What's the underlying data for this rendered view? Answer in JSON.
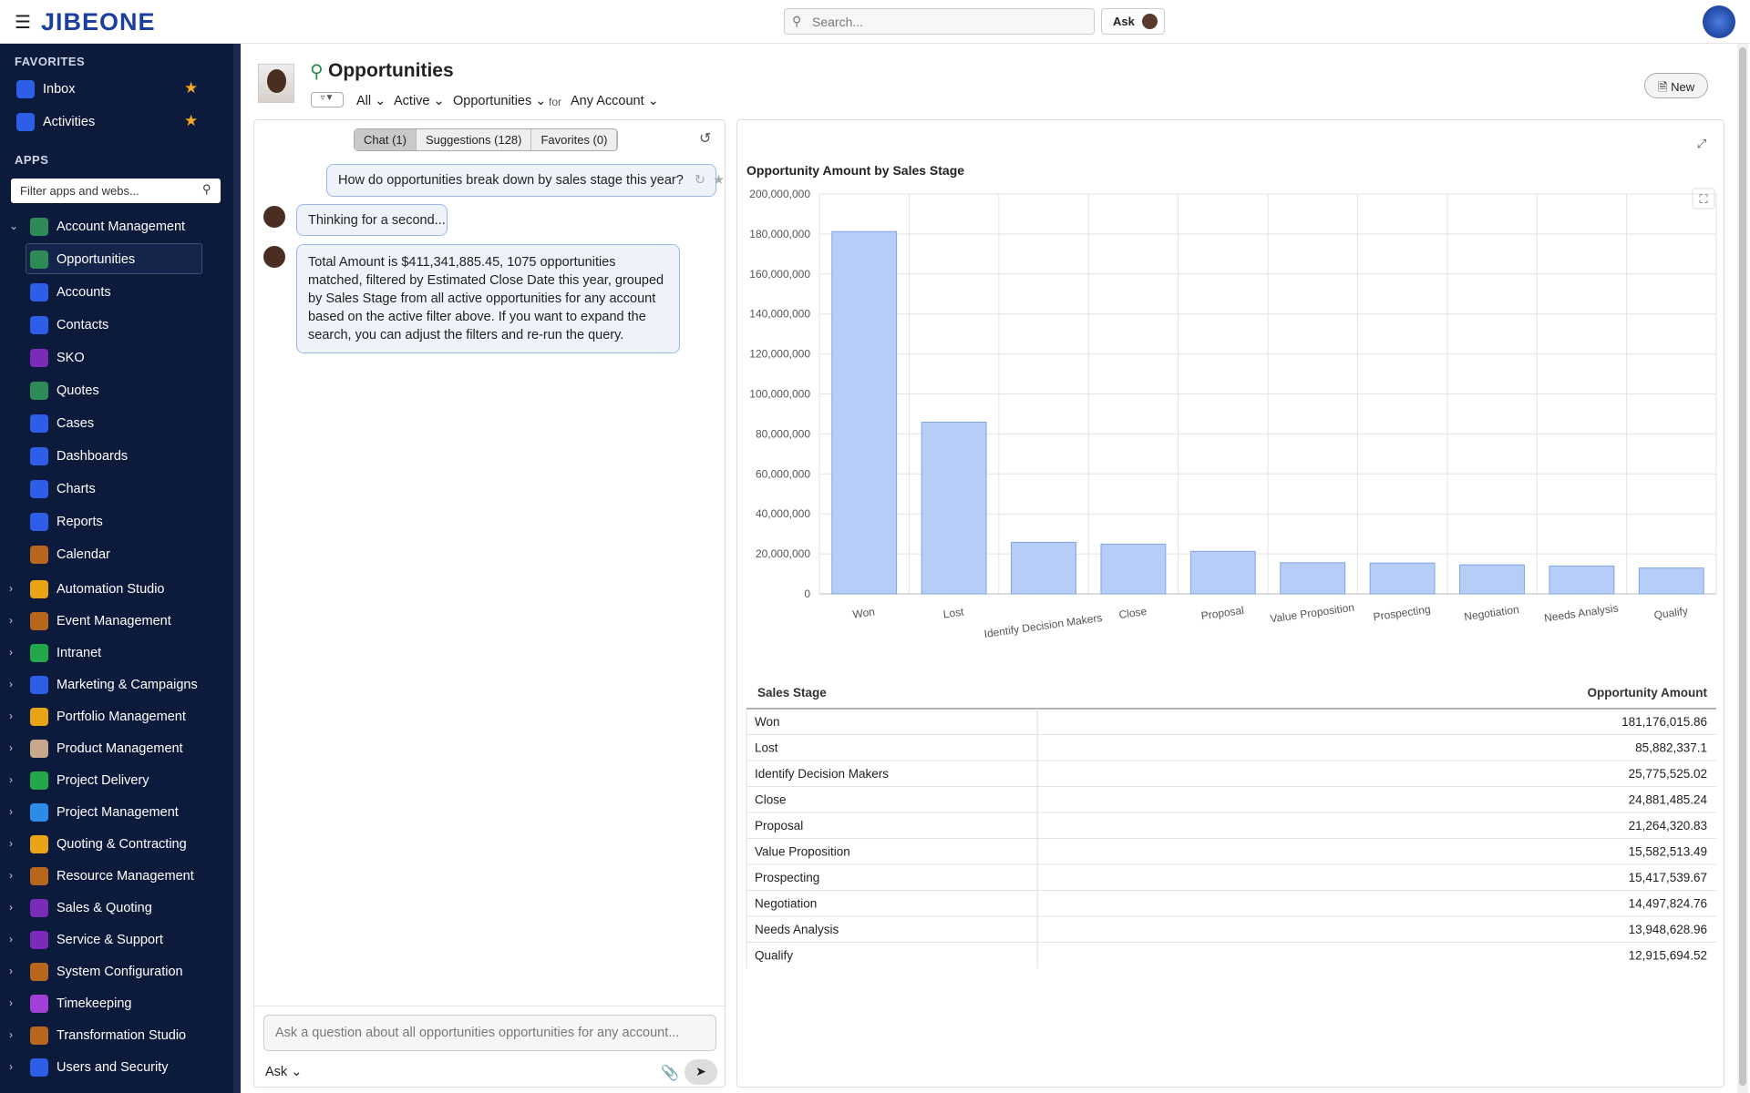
{
  "header": {
    "logo": "JIBEONE",
    "search_placeholder": "Search...",
    "ask": "Ask"
  },
  "sidebar": {
    "favorites_title": "FAVORITES",
    "favorites": [
      "Inbox",
      "Activities"
    ],
    "apps_title": "APPS",
    "filter_placeholder": "Filter apps and webs...",
    "open_group": {
      "name": "Account Management",
      "items": [
        "Opportunities",
        "Accounts",
        "Contacts",
        "SKO",
        "Quotes",
        "Cases",
        "Dashboards",
        "Charts",
        "Reports",
        "Calendar"
      ]
    },
    "groups": [
      "Automation Studio",
      "Event Management",
      "Intranet",
      "Marketing & Campaigns",
      "Portfolio Management",
      "Product Management",
      "Project Delivery",
      "Project Management",
      "Quoting & Contracting",
      "Resource Management",
      "Sales & Quoting",
      "Service & Support",
      "System Configuration",
      "Timekeeping",
      "Transformation Studio",
      "Users and Security"
    ]
  },
  "page": {
    "title": "Opportunities",
    "filters": [
      "All",
      "Active",
      "Opportunities"
    ],
    "for": "for",
    "account": "Any Account",
    "new_button": "New"
  },
  "chat": {
    "tabs": [
      "Chat (1)",
      "Suggestions (128)",
      "Favorites (0)"
    ],
    "question": "How do opportunities break down by sales stage this year?",
    "thinking": "Thinking for a second...",
    "answer": "Total Amount is $411,341,885.45, 1075 opportunities matched, filtered by Estimated Close Date this year, grouped by Sales Stage from all active opportunities for any account based on the active filter above. If you want to expand the search, you can adjust the filters and re-run the query.",
    "input_placeholder": "Ask a question about all opportunities opportunities for any account...",
    "mode": "Ask"
  },
  "chart": {
    "type": "bar",
    "title": "Opportunity Amount by Sales Stage",
    "categories": [
      "Won",
      "Lost",
      "Identify Decision Makers",
      "Close",
      "Proposal",
      "Value Proposition",
      "Prospecting",
      "Negotiation",
      "Needs Analysis",
      "Qualify"
    ],
    "values": [
      181176015.86,
      85882337.1,
      25775525.02,
      24881485.24,
      21264320.83,
      15582513.49,
      15417539.67,
      14497824.76,
      13948628.96,
      12915694.52
    ],
    "color": "#b5cdf7",
    "ylim": [
      0,
      200000000
    ],
    "yticks": [
      0,
      {
        "value": 20000000,
        "label": "20,000,000"
      },
      {
        "value": 40000000,
        "label": "40,000,000"
      },
      {
        "value": 60000000,
        "label": "60,000,000"
      },
      {
        "value": 80000000,
        "label": "80,000,000"
      },
      {
        "value": 100000000,
        "label": "100,000,000"
      },
      {
        "value": 120000000,
        "label": "120,000,000"
      },
      {
        "value": 140000000,
        "label": "140,000,000"
      },
      {
        "value": 160000000,
        "label": "160,000,000"
      },
      {
        "value": 180000000,
        "label": "180,000,000"
      },
      {
        "value": 200000000,
        "label": "200,000,000"
      }
    ],
    "grid": true
  },
  "table": {
    "headers": [
      "Sales Stage",
      "Opportunity Amount"
    ],
    "amounts": [
      "181,176,015.86",
      "85,882,337.1",
      "25,775,525.02",
      "24,881,485.24",
      "21,264,320.83",
      "15,582,513.49",
      "15,417,539.67",
      "14,497,824.76",
      "13,948,628.96",
      "12,915,694.52"
    ]
  }
}
